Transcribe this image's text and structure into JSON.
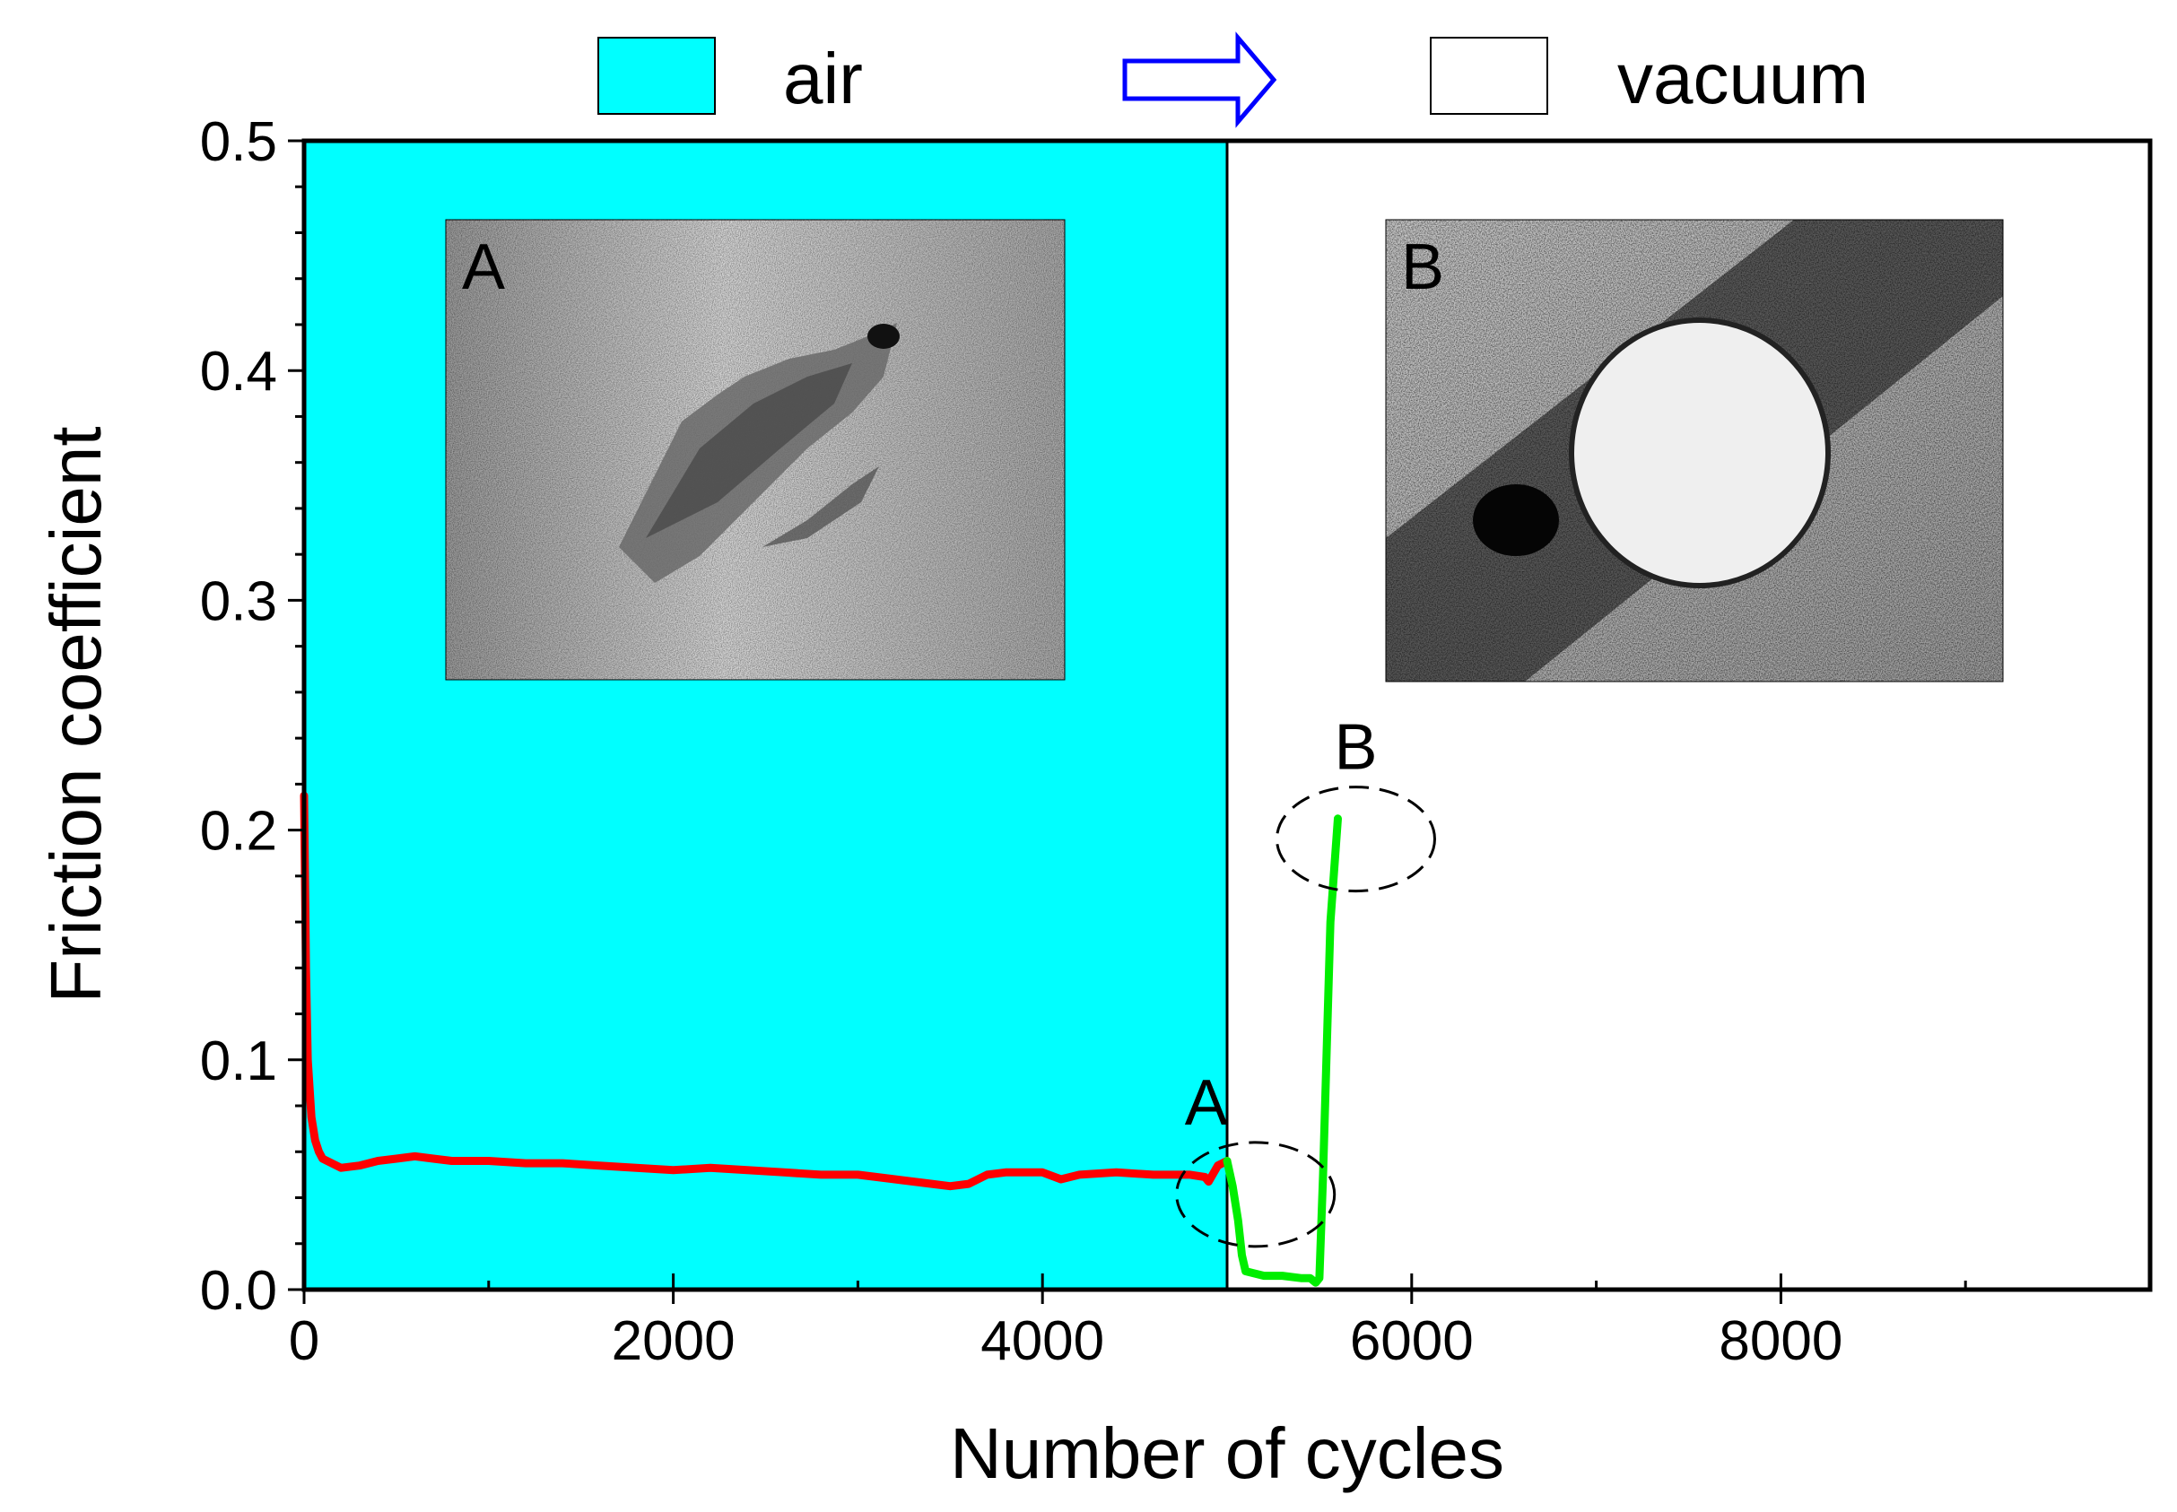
{
  "chart_data": {
    "type": "line",
    "xlabel": "Number of cycles",
    "ylabel": "Friction coefficient",
    "xlim": [
      0,
      10000
    ],
    "ylim": [
      0,
      0.5
    ],
    "x_ticks": [
      0,
      2000,
      4000,
      6000,
      8000
    ],
    "y_ticks": [
      0.0,
      0.1,
      0.2,
      0.3,
      0.4,
      0.5
    ],
    "x_tick_labels": [
      "0",
      "2000",
      "4000",
      "6000",
      "8000"
    ],
    "y_tick_labels": [
      "0.0",
      "0.1",
      "0.2",
      "0.3",
      "0.4",
      "0.5"
    ],
    "regions": [
      {
        "label": "air",
        "x_from": 0,
        "x_to": 5000,
        "color": "#00ffff"
      },
      {
        "label": "vacuum",
        "x_from": 5000,
        "x_to": 10000,
        "color": "#ffffff"
      }
    ],
    "legend": {
      "items": [
        {
          "label": "air",
          "color": "#00ffff"
        },
        {
          "label": "vacuum",
          "color": "#ffffff"
        }
      ],
      "arrow_color": "#0000ff",
      "placement": "top"
    },
    "series": [
      {
        "color": "#ff0000",
        "x": [
          0,
          10,
          20,
          40,
          60,
          80,
          100,
          150,
          200,
          300,
          400,
          500,
          600,
          700,
          800,
          1000,
          1200,
          1400,
          1600,
          1800,
          2000,
          2200,
          2400,
          2600,
          2800,
          3000,
          3200,
          3400,
          3500,
          3600,
          3700,
          3800,
          4000,
          4100,
          4200,
          4400,
          4600,
          4800,
          4880,
          4900,
          4950,
          5000
        ],
        "values": [
          0.215,
          0.14,
          0.1,
          0.075,
          0.065,
          0.06,
          0.057,
          0.055,
          0.053,
          0.054,
          0.056,
          0.057,
          0.058,
          0.057,
          0.056,
          0.056,
          0.055,
          0.055,
          0.054,
          0.053,
          0.052,
          0.053,
          0.052,
          0.051,
          0.05,
          0.05,
          0.048,
          0.046,
          0.045,
          0.046,
          0.05,
          0.051,
          0.051,
          0.048,
          0.05,
          0.051,
          0.05,
          0.05,
          0.049,
          0.047,
          0.054,
          0.056
        ]
      },
      {
        "color": "#00ee00",
        "x": [
          5000,
          5030,
          5060,
          5080,
          5100,
          5200,
          5300,
          5400,
          5450,
          5480,
          5500,
          5520,
          5560,
          5600
        ],
        "values": [
          0.056,
          0.045,
          0.03,
          0.015,
          0.008,
          0.006,
          0.006,
          0.005,
          0.005,
          0.003,
          0.005,
          0.05,
          0.16,
          0.205
        ]
      }
    ],
    "annotations": [
      {
        "label": "A",
        "x": 4950,
        "y": 0.05
      },
      {
        "label": "B",
        "x": 5600,
        "y": 0.2
      }
    ],
    "insets": [
      {
        "label": "A",
        "side": "left"
      },
      {
        "label": "B",
        "side": "right"
      }
    ],
    "grid": false
  }
}
